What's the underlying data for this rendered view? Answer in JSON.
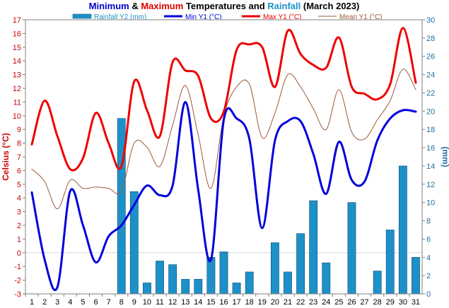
{
  "chart_data": {
    "type": "combo",
    "title_parts": [
      {
        "text": "Minimum",
        "color": "#0000cc"
      },
      {
        "text": " & ",
        "color": "#000000"
      },
      {
        "text": "Maximum",
        "color": "#dd0000"
      },
      {
        "text": " Temperatures and ",
        "color": "#000000"
      },
      {
        "text": "Rainfall",
        "color": "#1e90c8"
      },
      {
        "text": " (March 2023)",
        "color": "#000000"
      }
    ],
    "ylabel_left": "Celsius (°C)",
    "ylabel_right": "(mm)",
    "x": [
      1,
      2,
      3,
      4,
      5,
      6,
      7,
      8,
      9,
      10,
      11,
      12,
      13,
      14,
      15,
      16,
      17,
      18,
      19,
      20,
      21,
      22,
      23,
      24,
      25,
      26,
      27,
      28,
      29,
      30,
      31
    ],
    "x_ticks": [
      "1",
      "2",
      "3",
      "4",
      "5",
      "6",
      "7",
      "8",
      "9",
      "10",
      "11",
      "12",
      "13",
      "14",
      "15",
      "16",
      "17",
      "18",
      "19",
      "20",
      "21",
      "22",
      "23",
      "24",
      "25",
      "26",
      "27",
      "28",
      "29",
      "30",
      "31"
    ],
    "y_left_lim": [
      -3,
      17
    ],
    "y_left_ticks": [
      "-3",
      "-2",
      "-1",
      "0",
      "1",
      "2",
      "3",
      "4",
      "5",
      "6",
      "7",
      "8",
      "9",
      "10",
      "11",
      "12",
      "13",
      "14",
      "15",
      "16",
      "17"
    ],
    "y_right_lim": [
      0,
      30
    ],
    "y_right_ticks": [
      "0",
      "2",
      "4",
      "6",
      "8",
      "10",
      "12",
      "14",
      "16",
      "18",
      "20",
      "22",
      "24",
      "26",
      "28",
      "30"
    ],
    "legend_placement": "top",
    "series": [
      {
        "name": "Rainfall Y2 (mm)",
        "kind": "bar",
        "axis": "right",
        "color": "#1e90c8",
        "values": [
          0,
          0,
          0,
          0,
          0,
          0,
          0,
          19.2,
          11.2,
          1.2,
          3.6,
          3.2,
          1.6,
          1.6,
          4.0,
          4.6,
          1.2,
          2.4,
          0,
          5.6,
          2.4,
          6.6,
          10.2,
          3.4,
          0,
          10.0,
          0,
          2.5,
          7.0,
          14.0,
          4.0
        ]
      },
      {
        "name": "Min Y1 (°C)",
        "kind": "line",
        "axis": "left",
        "color": "#0000dd",
        "width": 3,
        "values": [
          4.4,
          -0.5,
          -2.5,
          4.5,
          2.0,
          -0.7,
          1.2,
          2.0,
          3.5,
          4.9,
          4.2,
          4.9,
          11.0,
          4.6,
          -0.5,
          9.7,
          9.8,
          8.3,
          1.8,
          8.2,
          9.6,
          9.6,
          7.2,
          4.3,
          8.1,
          5.3,
          5.2,
          8.2,
          9.8,
          10.4,
          10.3
        ]
      },
      {
        "name": "Max Y1 (°C)",
        "kind": "line",
        "axis": "left",
        "color": "#ee0000",
        "width": 3,
        "values": [
          7.9,
          11.1,
          8.5,
          6.1,
          6.9,
          10.2,
          8.0,
          6.3,
          12.5,
          10.4,
          8.5,
          13.9,
          13.3,
          12.9,
          9.8,
          10.3,
          14.8,
          15.2,
          15.0,
          12.1,
          16.2,
          14.5,
          13.7,
          13.5,
          15.7,
          12.1,
          11.6,
          11.2,
          12.3,
          16.4,
          12.4
        ]
      },
      {
        "name": "Mean Y1 (°C)",
        "kind": "line",
        "axis": "left",
        "color": "#9a5a38",
        "width": 1,
        "values": [
          6.1,
          5.2,
          3.2,
          5.3,
          4.7,
          4.8,
          4.7,
          4.5,
          8.0,
          7.7,
          6.3,
          9.3,
          12.2,
          8.6,
          4.7,
          10.0,
          12.1,
          12.3,
          8.4,
          10.2,
          13.0,
          12.1,
          10.5,
          9.0,
          11.9,
          8.8,
          8.3,
          9.7,
          11.1,
          13.4,
          11.9
        ]
      }
    ]
  }
}
